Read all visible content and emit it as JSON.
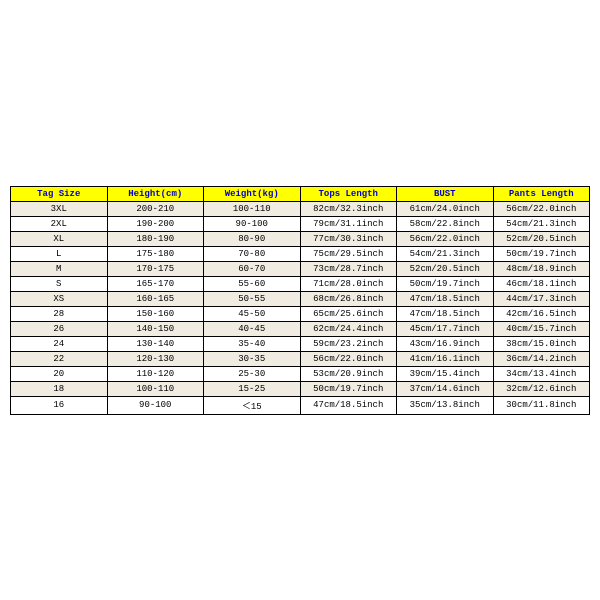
{
  "table": {
    "header_bg": "#ffff00",
    "header_color": "#0000cc",
    "columns": [
      "Tag Size",
      "Height(cm)",
      "Weight(kg)",
      "Tops Length",
      "BUST",
      "Pants Length"
    ],
    "rows": [
      [
        "3XL",
        "200-210",
        "100-110",
        "82cm/32.3inch",
        "61cm/24.0inch",
        "56cm/22.0inch"
      ],
      [
        "2XL",
        "190-200",
        "90-100",
        "79cm/31.1inch",
        "58cm/22.8inch",
        "54cm/21.3inch"
      ],
      [
        "XL",
        "180-190",
        "80-90",
        "77cm/30.3inch",
        "56cm/22.0inch",
        "52cm/20.5inch"
      ],
      [
        "L",
        "175-180",
        "70-80",
        "75cm/29.5inch",
        "54cm/21.3inch",
        "50cm/19.7inch"
      ],
      [
        "M",
        "170-175",
        "60-70",
        "73cm/28.7inch",
        "52cm/20.5inch",
        "48cm/18.9inch"
      ],
      [
        "S",
        "165-170",
        "55-60",
        "71cm/28.0inch",
        "50cm/19.7inch",
        "46cm/18.1inch"
      ],
      [
        "XS",
        "160-165",
        "50-55",
        "68cm/26.8inch",
        "47cm/18.5inch",
        "44cm/17.3inch"
      ],
      [
        "28",
        "150-160",
        "45-50",
        "65cm/25.6inch",
        "47cm/18.5inch",
        "42cm/16.5inch"
      ],
      [
        "26",
        "140-150",
        "40-45",
        "62cm/24.4inch",
        "45cm/17.7inch",
        "40cm/15.7inch"
      ],
      [
        "24",
        "130-140",
        "35-40",
        "59cm/23.2inch",
        "43cm/16.9inch",
        "38cm/15.0inch"
      ],
      [
        "22",
        "120-130",
        "30-35",
        "56cm/22.0inch",
        "41cm/16.1inch",
        "36cm/14.2inch"
      ],
      [
        "20",
        "110-120",
        "25-30",
        "53cm/20.9inch",
        "39cm/15.4inch",
        "34cm/13.4inch"
      ],
      [
        "18",
        "100-110",
        "15-25",
        "50cm/19.7inch",
        "37cm/14.6inch",
        "32cm/12.6inch"
      ],
      [
        "16",
        "90-100",
        "＜15",
        "47cm/18.5inch",
        "35cm/13.8inch",
        "30cm/11.8inch"
      ]
    ]
  }
}
